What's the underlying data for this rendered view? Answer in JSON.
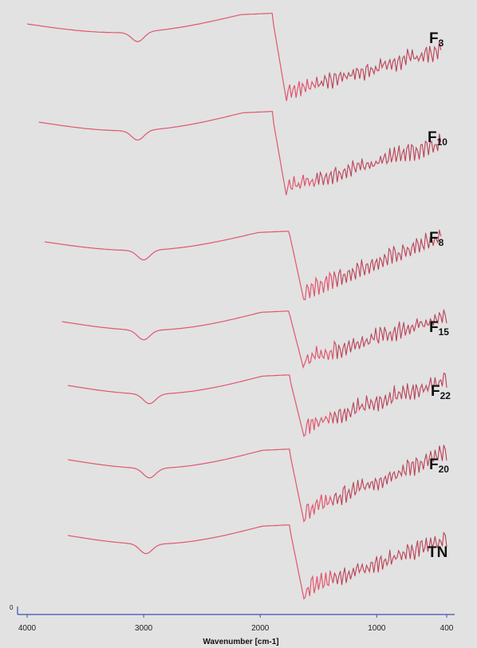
{
  "chart_data": {
    "type": "line",
    "xlabel": "Wavenumber [cm-1]",
    "xlim": [
      4000,
      400
    ],
    "x_ticks": [
      4000,
      3000,
      2000,
      1000,
      400
    ],
    "x_tick_labels": [
      "4000",
      "3000",
      "2000",
      "1000",
      "400"
    ],
    "y_axis_zero_label": "0",
    "grid": false,
    "colors": {
      "trace": "#e0566e",
      "trace_dark": "#2a2a2a",
      "axis": "#3b54b3",
      "background": "#e2e2e2"
    },
    "series": [
      {
        "label_main": "F",
        "label_sub": "3",
        "label_full": "F3",
        "x_start": 4000,
        "x_end": 450
      },
      {
        "label_main": "F",
        "label_sub": "10",
        "label_full": "F10",
        "x_start": 3900,
        "x_end": 450
      },
      {
        "label_main": "F",
        "label_sub": "8",
        "label_full": "F8",
        "x_start": 3850,
        "x_end": 450
      },
      {
        "label_main": "F",
        "label_sub": "15",
        "label_full": "F15",
        "x_start": 3700,
        "x_end": 400
      },
      {
        "label_main": "F",
        "label_sub": "22",
        "label_full": "F22",
        "x_start": 3650,
        "x_end": 400
      },
      {
        "label_main": "F",
        "label_sub": "20",
        "label_full": "F20",
        "x_start": 3650,
        "x_end": 400
      },
      {
        "label_main": "TN",
        "label_sub": "",
        "label_full": "TN",
        "x_start": 3650,
        "x_end": 400
      }
    ]
  }
}
